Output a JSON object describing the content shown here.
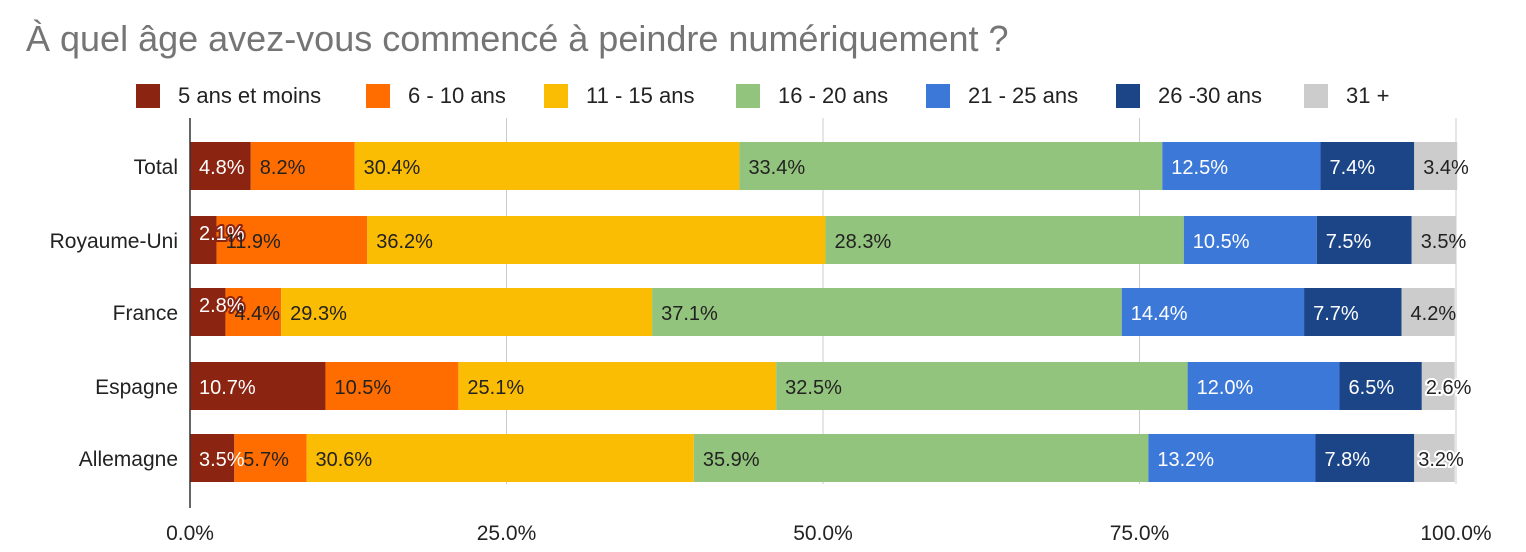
{
  "chart_data": {
    "type": "bar",
    "orientation": "horizontal",
    "stacked": "percent",
    "title": "À quel âge avez-vous commencé à peindre numériquement ?",
    "xlabel": "",
    "ylabel": "",
    "xlim": [
      0,
      100
    ],
    "grid": true,
    "legend_position": "top",
    "categories": [
      "Total",
      "Royaume-Uni",
      "France",
      "Espagne",
      "Allemagne"
    ],
    "series": [
      {
        "name": "5 ans et moins",
        "color": "#8c2412",
        "label_color": "#ffffff",
        "values": [
          4.8,
          2.1,
          2.8,
          10.7,
          3.5
        ],
        "labels": [
          "4.8%",
          "2.1%",
          "2.8%",
          "10.7%",
          "3.5%"
        ]
      },
      {
        "name": "6 - 10 ans",
        "color": "#ff6d00",
        "label_color": "#222222",
        "values": [
          8.2,
          11.9,
          4.4,
          10.5,
          5.7
        ],
        "labels": [
          "8.2%",
          "11.9%",
          "4.4%",
          "10.5%",
          "5.7%"
        ]
      },
      {
        "name": "11 - 15 ans",
        "color": "#fbbc04",
        "label_color": "#222222",
        "values": [
          30.4,
          36.2,
          29.3,
          25.1,
          30.6
        ],
        "labels": [
          "30.4%",
          "36.2%",
          "29.3%",
          "25.1%",
          "30.6%"
        ]
      },
      {
        "name": "16 - 20 ans",
        "color": "#93c47d",
        "label_color": "#222222",
        "values": [
          33.4,
          28.3,
          37.1,
          32.5,
          35.9
        ],
        "labels": [
          "33.4%",
          "28.3%",
          "37.1%",
          "32.5%",
          "35.9%"
        ]
      },
      {
        "name": "21 - 25 ans",
        "color": "#3c78d8",
        "label_color": "#ffffff",
        "values": [
          12.5,
          10.5,
          14.4,
          12.0,
          13.2
        ],
        "labels": [
          "12.5%",
          "10.5%",
          "14.4%",
          "12.0%",
          "13.2%"
        ]
      },
      {
        "name": "26 -30 ans",
        "color": "#1c4587",
        "label_color": "#ffffff",
        "values": [
          7.4,
          7.5,
          7.7,
          6.5,
          7.8
        ],
        "labels": [
          "7.4%",
          "7.5%",
          "7.7%",
          "6.5%",
          "7.8%"
        ]
      },
      {
        "name": "31 +",
        "color": "#cccccc",
        "label_color": "#222222",
        "values": [
          3.4,
          3.5,
          4.2,
          2.6,
          3.2
        ],
        "labels": [
          "3.4%",
          "3.5%",
          "4.2%",
          "2.6%",
          "3.2%"
        ]
      }
    ],
    "ticks": [
      0,
      25,
      50,
      75,
      100
    ],
    "tick_labels": [
      "0.0%",
      "25.0%",
      "50.0%",
      "75.0%",
      "100.0%"
    ]
  }
}
